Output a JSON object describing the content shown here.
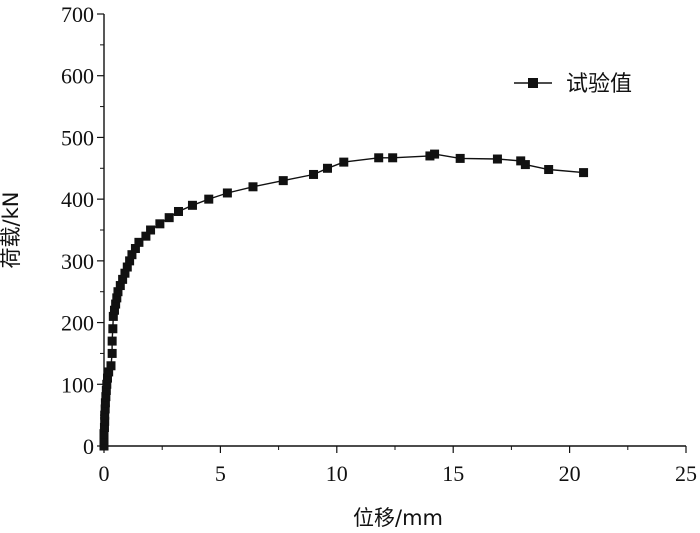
{
  "chart_data": {
    "type": "line",
    "xlabel": "位移/mm",
    "ylabel": "荷载/kN",
    "xlim": [
      0,
      25
    ],
    "ylim": [
      0,
      700
    ],
    "xticks": [
      "0",
      "5",
      "10",
      "15",
      "20",
      "25"
    ],
    "yticks": [
      "0",
      "100",
      "200",
      "300",
      "400",
      "500",
      "600",
      "700"
    ],
    "grid": false,
    "legend_position": "top-right",
    "colors": {
      "series": "#111111",
      "axis": "#111111"
    },
    "series": [
      {
        "name": "试验值",
        "marker": "square",
        "points": [
          [
            0.0,
            0
          ],
          [
            0.0,
            10
          ],
          [
            0.0,
            20
          ],
          [
            0.02,
            30
          ],
          [
            0.03,
            40
          ],
          [
            0.03,
            50
          ],
          [
            0.05,
            60
          ],
          [
            0.06,
            70
          ],
          [
            0.08,
            80
          ],
          [
            0.1,
            90
          ],
          [
            0.12,
            100
          ],
          [
            0.15,
            110
          ],
          [
            0.2,
            120
          ],
          [
            0.3,
            130
          ],
          [
            0.35,
            150
          ],
          [
            0.35,
            170
          ],
          [
            0.38,
            190
          ],
          [
            0.4,
            210
          ],
          [
            0.45,
            220
          ],
          [
            0.5,
            230
          ],
          [
            0.55,
            240
          ],
          [
            0.6,
            250
          ],
          [
            0.7,
            260
          ],
          [
            0.8,
            270
          ],
          [
            0.9,
            280
          ],
          [
            1.0,
            290
          ],
          [
            1.1,
            300
          ],
          [
            1.2,
            310
          ],
          [
            1.35,
            320
          ],
          [
            1.5,
            330
          ],
          [
            1.8,
            340
          ],
          [
            2.0,
            350
          ],
          [
            2.4,
            360
          ],
          [
            2.8,
            370
          ],
          [
            3.2,
            380
          ],
          [
            3.8,
            390
          ],
          [
            4.5,
            400
          ],
          [
            5.3,
            410
          ],
          [
            6.4,
            420
          ],
          [
            7.7,
            430
          ],
          [
            9.0,
            440
          ],
          [
            9.6,
            450
          ],
          [
            10.3,
            460
          ],
          [
            11.8,
            467
          ],
          [
            12.4,
            467
          ],
          [
            14.0,
            470
          ],
          [
            14.2,
            473
          ],
          [
            15.3,
            466
          ],
          [
            16.9,
            465
          ],
          [
            17.9,
            462
          ],
          [
            18.1,
            456
          ],
          [
            19.1,
            448
          ],
          [
            20.6,
            443
          ]
        ]
      }
    ]
  }
}
